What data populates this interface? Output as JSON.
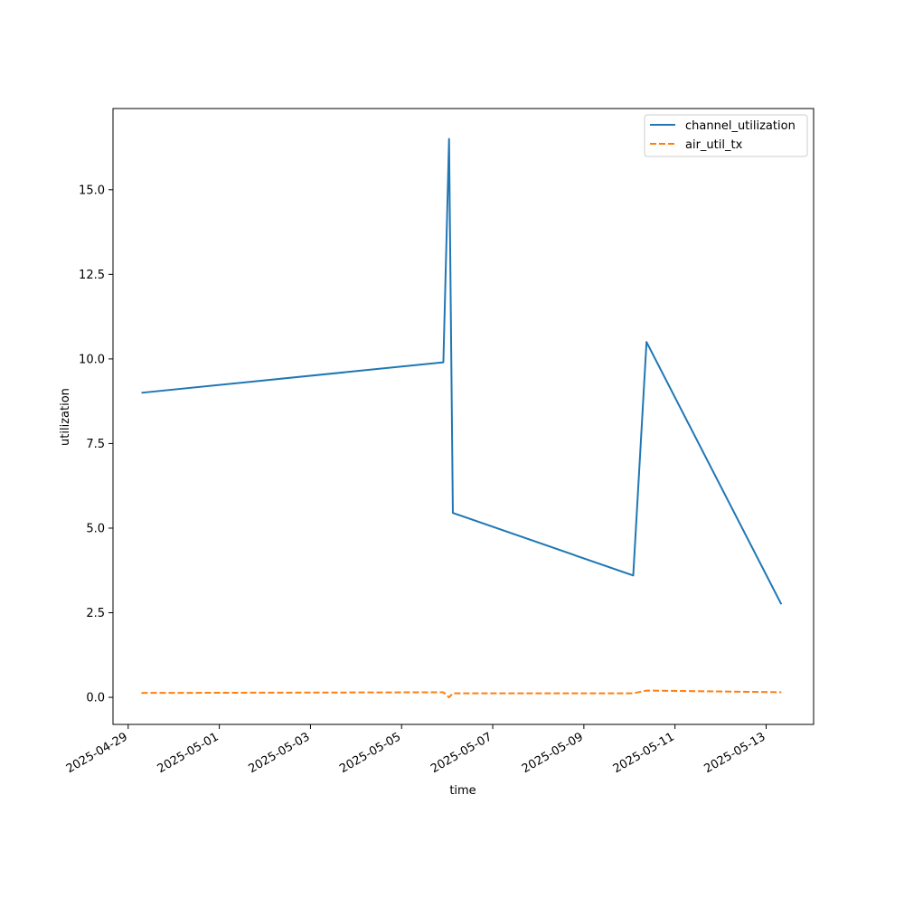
{
  "chart_data": {
    "type": "line",
    "title": "",
    "xlabel": "time",
    "ylabel": "utilization",
    "x_tick_labels": [
      "2025-04-29",
      "2025-05-01",
      "2025-05-03",
      "2025-05-05",
      "2025-05-07",
      "2025-05-09",
      "2025-05-11",
      "2025-05-13"
    ],
    "y_tick_labels": [
      "0.0",
      "2.5",
      "5.0",
      "7.5",
      "10.0",
      "12.5",
      "15.0"
    ],
    "x_range": [
      "2025-04-28T16:00",
      "2025-05-14T01:00"
    ],
    "ylim": [
      -0.8,
      17.4
    ],
    "grid": false,
    "legend_position": "top-right",
    "series": [
      {
        "name": "channel_utilization",
        "color": "#1f77b4",
        "style": "solid",
        "points": [
          {
            "x": "2025-04-29T07:00",
            "y": 9.0
          },
          {
            "x": "2025-05-05T22:00",
            "y": 9.9
          },
          {
            "x": "2025-05-06T01:00",
            "y": 16.5
          },
          {
            "x": "2025-05-06T03:00",
            "y": 5.45
          },
          {
            "x": "2025-05-10T02:00",
            "y": 3.6
          },
          {
            "x": "2025-05-10T09:00",
            "y": 10.5
          },
          {
            "x": "2025-05-13T08:00",
            "y": 2.75
          }
        ]
      },
      {
        "name": "air_util_tx",
        "color": "#ff7f0e",
        "style": "dashed",
        "points": [
          {
            "x": "2025-04-29T07:00",
            "y": 0.13
          },
          {
            "x": "2025-05-05T22:00",
            "y": 0.15
          },
          {
            "x": "2025-05-06T01:00",
            "y": 0.0
          },
          {
            "x": "2025-05-06T03:00",
            "y": 0.12
          },
          {
            "x": "2025-05-10T02:00",
            "y": 0.12
          },
          {
            "x": "2025-05-10T09:00",
            "y": 0.2
          },
          {
            "x": "2025-05-13T08:00",
            "y": 0.15
          }
        ]
      }
    ]
  }
}
